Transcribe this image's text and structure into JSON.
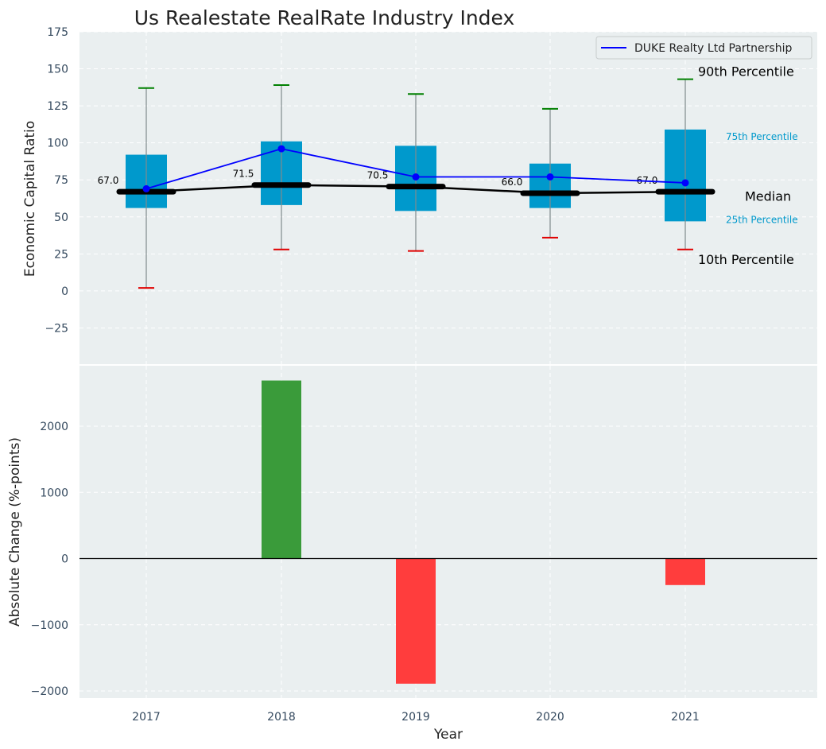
{
  "chart_data": [
    {
      "type": "box",
      "title": "Us Realestate RealRate Industry Index",
      "xlabel": "",
      "ylabel": "Economic Capital Ratio",
      "ylim": [
        -50,
        175
      ],
      "yticks": [
        -25,
        0,
        25,
        50,
        75,
        100,
        125,
        150,
        175
      ],
      "ytick_labels": [
        "−25",
        "0",
        "25",
        "50",
        "75",
        "100",
        "125",
        "150",
        "175"
      ],
      "categories": [
        "2017",
        "2018",
        "2019",
        "2020",
        "2021"
      ],
      "boxes": {
        "p10": [
          2,
          28,
          27,
          36,
          28
        ],
        "p25": [
          56,
          58,
          54,
          56,
          47
        ],
        "median": [
          67.0,
          71.5,
          70.5,
          66.0,
          67.0
        ],
        "p75": [
          92,
          101,
          98,
          86,
          109
        ],
        "p90": [
          137,
          139,
          133,
          123,
          143
        ]
      },
      "median_labels": [
        "67.0",
        "71.5",
        "70.5",
        "66.0",
        "67.0"
      ],
      "series": [
        {
          "name": "DUKE Realty Ltd Partnership",
          "values": [
            69,
            96,
            77,
            77,
            73
          ]
        }
      ],
      "legend": {
        "position": "top-right",
        "entries": [
          "DUKE Realty Ltd Partnership"
        ]
      },
      "annotations": {
        "p90": "90th Percentile",
        "p75": "75th Percentile",
        "median": "Median",
        "p25": "25th Percentile",
        "p10": "10th Percentile"
      },
      "grid": true,
      "colors": {
        "box": "#0099cc",
        "whisker": "#808b8d",
        "cap_high": "#008000",
        "cap_low": "#e00000",
        "median": "#000000",
        "series": "#0000ff",
        "background": "#eaeff0"
      }
    },
    {
      "type": "bar",
      "xlabel": "Year",
      "ylabel": "Absolute Change (%-points)",
      "categories": [
        "2017",
        "2018",
        "2019",
        "2020",
        "2021"
      ],
      "values": [
        0,
        2690,
        -1890,
        0,
        -400
      ],
      "ylim": [
        -2120,
        2880
      ],
      "yticks": [
        -2000,
        -1000,
        0,
        1000,
        2000
      ],
      "ytick_labels": [
        "−2000",
        "−1000",
        "0",
        "1000",
        "2000"
      ],
      "grid": true,
      "colors": {
        "positive": "#3a9b3a",
        "negative": "#ff3d3d",
        "zero_line": "#000000"
      }
    }
  ]
}
